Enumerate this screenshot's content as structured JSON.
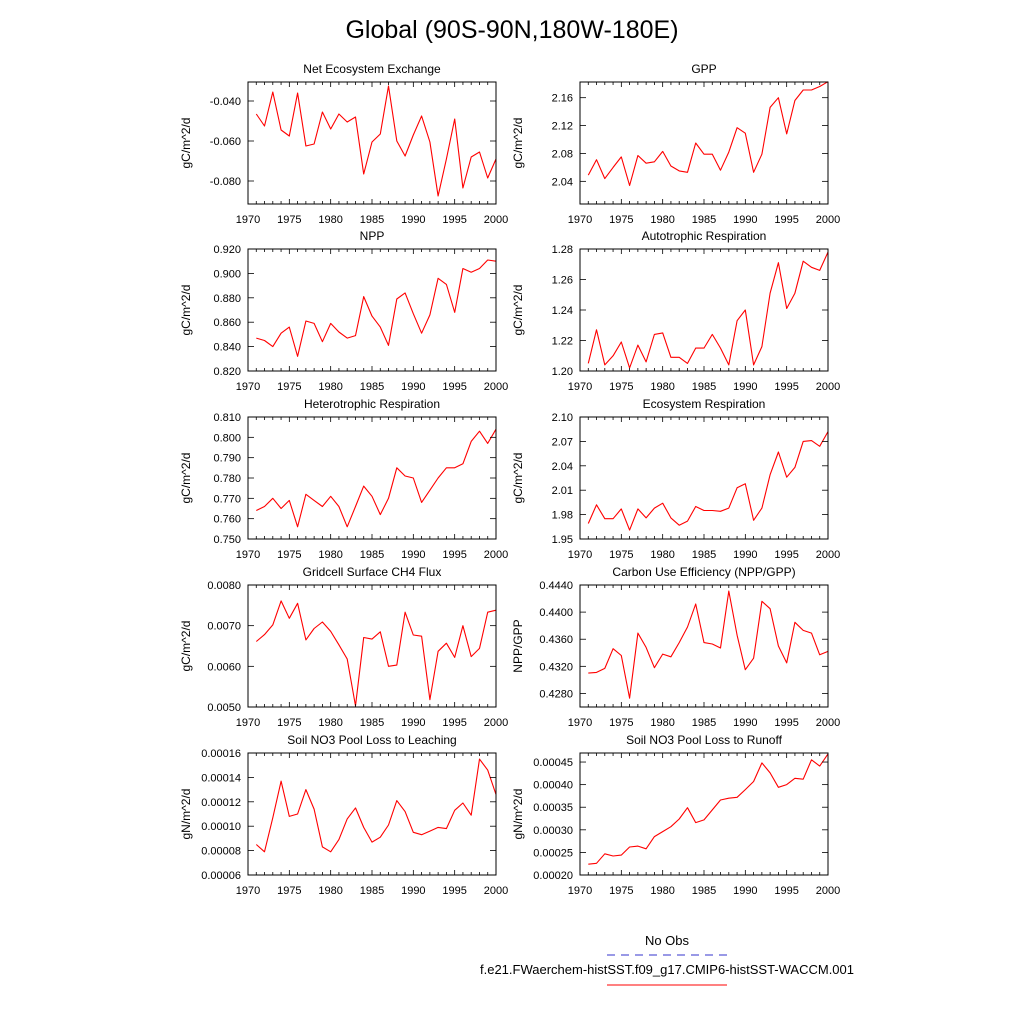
{
  "title": "Global (90S-90N,180W-180E)",
  "legend": {
    "entries": [
      {
        "label": "No Obs",
        "color": "#3333cc",
        "dash": "dashed"
      },
      {
        "label": "f.e21.FWaerchem-histSST.f09_g17.CMIP6-histSST-WACCM.001",
        "color": "#ff0000",
        "dash": "solid"
      }
    ],
    "placement": "bottom-center"
  },
  "chart_data": [
    {
      "type": "line",
      "title": "Net Ecosystem Exchange",
      "ylabel": "gC/m^2/d",
      "xlabel": "",
      "xlim": [
        1970,
        2000
      ],
      "ylim": [
        -0.0915,
        -0.0305
      ],
      "xticks": [
        "1970",
        "1975",
        "1980",
        "1985",
        "1990",
        "1995",
        "2000"
      ],
      "yticks": [
        {
          "v": -0.04,
          "label": "-0.040"
        },
        {
          "v": -0.06,
          "label": "-0.060"
        },
        {
          "v": -0.08,
          "label": "-0.080"
        }
      ],
      "x": [
        1971,
        1972,
        1973,
        1974,
        1975,
        1976,
        1977,
        1978,
        1979,
        1980,
        1981,
        1982,
        1983,
        1984,
        1985,
        1986,
        1987,
        1988,
        1989,
        1990,
        1991,
        1992,
        1993,
        1994,
        1995,
        1996,
        1997,
        1998,
        1999,
        2000
      ],
      "series": [
        {
          "color": "#ff0000",
          "values": [
            -0.0465,
            -0.0525,
            -0.0355,
            -0.0545,
            -0.0575,
            -0.036,
            -0.0625,
            -0.0615,
            -0.0455,
            -0.054,
            -0.0465,
            -0.0505,
            -0.048,
            -0.0765,
            -0.0605,
            -0.0565,
            -0.0325,
            -0.06,
            -0.0675,
            -0.057,
            -0.0475,
            -0.0605,
            -0.0875,
            -0.069,
            -0.049,
            -0.0835,
            -0.068,
            -0.0655,
            -0.0785,
            -0.069
          ]
        }
      ],
      "grid": false
    },
    {
      "type": "line",
      "title": "GPP",
      "ylabel": "gC/m^2/d",
      "xlabel": "",
      "xlim": [
        1970,
        2000
      ],
      "ylim": [
        2.0075,
        2.1825
      ],
      "xticks": [
        "1970",
        "1975",
        "1980",
        "1985",
        "1990",
        "1995",
        "2000"
      ],
      "yticks": [
        {
          "v": 2.04,
          "label": "2.04"
        },
        {
          "v": 2.08,
          "label": "2.08"
        },
        {
          "v": 2.12,
          "label": "2.12"
        },
        {
          "v": 2.16,
          "label": "2.16"
        }
      ],
      "x": [
        1971,
        1972,
        1973,
        1974,
        1975,
        1976,
        1977,
        1978,
        1979,
        1980,
        1981,
        1982,
        1983,
        1984,
        1985,
        1986,
        1987,
        1988,
        1989,
        1990,
        1991,
        1992,
        1993,
        1994,
        1995,
        1996,
        1997,
        1998,
        1999,
        2000
      ],
      "series": [
        {
          "color": "#ff0000",
          "values": [
            2.049,
            2.071,
            2.044,
            2.06,
            2.075,
            2.034,
            2.077,
            2.066,
            2.068,
            2.083,
            2.062,
            2.055,
            2.053,
            2.095,
            2.079,
            2.079,
            2.056,
            2.082,
            2.117,
            2.109,
            2.053,
            2.079,
            2.146,
            2.16,
            2.108,
            2.156,
            2.171,
            2.171,
            2.176,
            2.183
          ]
        }
      ],
      "grid": false
    },
    {
      "type": "line",
      "title": "NPP",
      "ylabel": "gC/m^2/d",
      "xlabel": "",
      "xlim": [
        1970,
        2000
      ],
      "ylim": [
        0.82,
        0.92
      ],
      "xticks": [
        "1970",
        "1975",
        "1980",
        "1985",
        "1990",
        "1995",
        "2000"
      ],
      "yticks": [
        {
          "v": 0.82,
          "label": "0.820"
        },
        {
          "v": 0.84,
          "label": "0.840"
        },
        {
          "v": 0.86,
          "label": "0.860"
        },
        {
          "v": 0.88,
          "label": "0.880"
        },
        {
          "v": 0.9,
          "label": "0.900"
        },
        {
          "v": 0.92,
          "label": "0.920"
        }
      ],
      "x": [
        1971,
        1972,
        1973,
        1974,
        1975,
        1976,
        1977,
        1978,
        1979,
        1980,
        1981,
        1982,
        1983,
        1984,
        1985,
        1986,
        1987,
        1988,
        1989,
        1990,
        1991,
        1992,
        1993,
        1994,
        1995,
        1996,
        1997,
        1998,
        1999,
        2000
      ],
      "series": [
        {
          "color": "#ff0000",
          "values": [
            0.847,
            0.845,
            0.84,
            0.851,
            0.856,
            0.832,
            0.861,
            0.859,
            0.844,
            0.859,
            0.852,
            0.847,
            0.849,
            0.881,
            0.865,
            0.856,
            0.841,
            0.879,
            0.884,
            0.867,
            0.851,
            0.866,
            0.896,
            0.891,
            0.868,
            0.904,
            0.901,
            0.904,
            0.911,
            0.91
          ]
        }
      ],
      "grid": false
    },
    {
      "type": "line",
      "title": "Autotrophic Respiration",
      "ylabel": "gC/m^2/d",
      "xlabel": "",
      "xlim": [
        1970,
        2000
      ],
      "ylim": [
        1.2,
        1.28
      ],
      "xticks": [
        "1970",
        "1975",
        "1980",
        "1985",
        "1990",
        "1995",
        "2000"
      ],
      "yticks": [
        {
          "v": 1.2,
          "label": "1.20"
        },
        {
          "v": 1.22,
          "label": "1.22"
        },
        {
          "v": 1.24,
          "label": "1.24"
        },
        {
          "v": 1.26,
          "label": "1.26"
        },
        {
          "v": 1.28,
          "label": "1.28"
        }
      ],
      "x": [
        1971,
        1972,
        1973,
        1974,
        1975,
        1976,
        1977,
        1978,
        1979,
        1980,
        1981,
        1982,
        1983,
        1984,
        1985,
        1986,
        1987,
        1988,
        1989,
        1990,
        1991,
        1992,
        1993,
        1994,
        1995,
        1996,
        1997,
        1998,
        1999,
        2000
      ],
      "series": [
        {
          "color": "#ff0000",
          "values": [
            1.205,
            1.227,
            1.204,
            1.21,
            1.219,
            1.202,
            1.217,
            1.206,
            1.224,
            1.225,
            1.209,
            1.209,
            1.205,
            1.215,
            1.215,
            1.224,
            1.215,
            1.204,
            1.233,
            1.24,
            1.204,
            1.216,
            1.251,
            1.271,
            1.241,
            1.251,
            1.272,
            1.268,
            1.266,
            1.278
          ]
        }
      ],
      "grid": false
    },
    {
      "type": "line",
      "title": "Heterotrophic Respiration",
      "ylabel": "gC/m^2/d",
      "xlabel": "",
      "xlim": [
        1970,
        2000
      ],
      "ylim": [
        0.75,
        0.81
      ],
      "xticks": [
        "1970",
        "1975",
        "1980",
        "1985",
        "1990",
        "1995",
        "2000"
      ],
      "yticks": [
        {
          "v": 0.75,
          "label": "0.750"
        },
        {
          "v": 0.76,
          "label": "0.760"
        },
        {
          "v": 0.77,
          "label": "0.770"
        },
        {
          "v": 0.78,
          "label": "0.780"
        },
        {
          "v": 0.79,
          "label": "0.790"
        },
        {
          "v": 0.8,
          "label": "0.800"
        },
        {
          "v": 0.81,
          "label": "0.810"
        }
      ],
      "x": [
        1971,
        1972,
        1973,
        1974,
        1975,
        1976,
        1977,
        1978,
        1979,
        1980,
        1981,
        1982,
        1983,
        1984,
        1985,
        1986,
        1987,
        1988,
        1989,
        1990,
        1991,
        1992,
        1993,
        1994,
        1995,
        1996,
        1997,
        1998,
        1999,
        2000
      ],
      "series": [
        {
          "color": "#ff0000",
          "values": [
            0.764,
            0.766,
            0.77,
            0.765,
            0.769,
            0.756,
            0.772,
            0.769,
            0.766,
            0.771,
            0.766,
            0.756,
            0.766,
            0.776,
            0.771,
            0.762,
            0.77,
            0.785,
            0.781,
            0.78,
            0.768,
            0.774,
            0.78,
            0.785,
            0.785,
            0.787,
            0.798,
            0.803,
            0.797,
            0.804
          ]
        }
      ],
      "grid": false
    },
    {
      "type": "line",
      "title": "Ecosystem Respiration",
      "ylabel": "gC/m^2/d",
      "xlabel": "",
      "xlim": [
        1970,
        2000
      ],
      "ylim": [
        1.95,
        2.1
      ],
      "xticks": [
        "1970",
        "1975",
        "1980",
        "1985",
        "1990",
        "1995",
        "2000"
      ],
      "yticks": [
        {
          "v": 1.95,
          "label": "1.95"
        },
        {
          "v": 1.98,
          "label": "1.98"
        },
        {
          "v": 2.01,
          "label": "2.01"
        },
        {
          "v": 2.04,
          "label": "2.04"
        },
        {
          "v": 2.07,
          "label": "2.07"
        },
        {
          "v": 2.1,
          "label": "2.10"
        }
      ],
      "x": [
        1971,
        1972,
        1973,
        1974,
        1975,
        1976,
        1977,
        1978,
        1979,
        1980,
        1981,
        1982,
        1983,
        1984,
        1985,
        1986,
        1987,
        1988,
        1989,
        1990,
        1991,
        1992,
        1993,
        1994,
        1995,
        1996,
        1997,
        1998,
        1999,
        2000
      ],
      "series": [
        {
          "color": "#ff0000",
          "values": [
            1.969,
            1.992,
            1.975,
            1.975,
            1.987,
            1.961,
            1.987,
            1.976,
            1.988,
            1.994,
            1.976,
            1.967,
            1.972,
            1.99,
            1.985,
            1.985,
            1.984,
            1.988,
            2.013,
            2.018,
            1.973,
            1.988,
            2.029,
            2.057,
            2.026,
            2.038,
            2.07,
            2.071,
            2.064,
            2.082
          ]
        }
      ],
      "grid": false
    },
    {
      "type": "line",
      "title": "Gridcell Surface CH4 Flux",
      "ylabel": "gC/m^2/d",
      "xlabel": "",
      "xlim": [
        1970,
        2000
      ],
      "ylim": [
        0.005,
        0.008
      ],
      "xticks": [
        "1970",
        "1975",
        "1980",
        "1985",
        "1990",
        "1995",
        "2000"
      ],
      "yticks": [
        {
          "v": 0.005,
          "label": "0.0050"
        },
        {
          "v": 0.006,
          "label": "0.0060"
        },
        {
          "v": 0.007,
          "label": "0.0070"
        },
        {
          "v": 0.008,
          "label": "0.0080"
        }
      ],
      "x": [
        1971,
        1972,
        1973,
        1974,
        1975,
        1976,
        1977,
        1978,
        1979,
        1980,
        1981,
        1982,
        1983,
        1984,
        1985,
        1986,
        1987,
        1988,
        1989,
        1990,
        1991,
        1992,
        1993,
        1994,
        1995,
        1996,
        1997,
        1998,
        1999,
        2000
      ],
      "series": [
        {
          "color": "#ff0000",
          "values": [
            0.00661,
            0.00678,
            0.00702,
            0.00761,
            0.00718,
            0.00755,
            0.00665,
            0.00693,
            0.00709,
            0.00686,
            0.00653,
            0.00618,
            0.00503,
            0.00671,
            0.00667,
            0.00685,
            0.006,
            0.00603,
            0.00733,
            0.00677,
            0.00674,
            0.00518,
            0.00637,
            0.00657,
            0.00622,
            0.007,
            0.00624,
            0.00644,
            0.00733,
            0.00738
          ]
        }
      ],
      "grid": false
    },
    {
      "type": "line",
      "title": "Carbon Use Efficiency (NPP/GPP)",
      "ylabel": "NPP/GPP",
      "xlabel": "",
      "xlim": [
        1970,
        2000
      ],
      "ylim": [
        0.426,
        0.444
      ],
      "xticks": [
        "1970",
        "1975",
        "1980",
        "1985",
        "1990",
        "1995",
        "2000"
      ],
      "yticks": [
        {
          "v": 0.428,
          "label": "0.4280"
        },
        {
          "v": 0.432,
          "label": "0.4320"
        },
        {
          "v": 0.436,
          "label": "0.4360"
        },
        {
          "v": 0.44,
          "label": "0.4400"
        },
        {
          "v": 0.444,
          "label": "0.4440"
        }
      ],
      "x": [
        1971,
        1972,
        1973,
        1974,
        1975,
        1976,
        1977,
        1978,
        1979,
        1980,
        1981,
        1982,
        1983,
        1984,
        1985,
        1986,
        1987,
        1988,
        1989,
        1990,
        1991,
        1992,
        1993,
        1994,
        1995,
        1996,
        1997,
        1998,
        1999,
        2000
      ],
      "series": [
        {
          "color": "#ff0000",
          "values": [
            0.431,
            0.4311,
            0.4317,
            0.4346,
            0.4336,
            0.4273,
            0.4369,
            0.4348,
            0.4318,
            0.4338,
            0.4334,
            0.4355,
            0.4378,
            0.4412,
            0.4355,
            0.4353,
            0.4347,
            0.4431,
            0.4366,
            0.4315,
            0.4332,
            0.4416,
            0.4405,
            0.435,
            0.4325,
            0.4385,
            0.4373,
            0.4369,
            0.4337,
            0.4342
          ]
        }
      ],
      "grid": false
    },
    {
      "type": "line",
      "title": "Soil NO3 Pool Loss to Leaching",
      "ylabel": "gN/m^2/d",
      "xlabel": "",
      "xlim": [
        1970,
        2000
      ],
      "ylim": [
        6e-05,
        0.00016
      ],
      "xticks": [
        "1970",
        "1975",
        "1980",
        "1985",
        "1990",
        "1995",
        "2000"
      ],
      "yticks": [
        {
          "v": 6e-05,
          "label": "0.00006"
        },
        {
          "v": 8e-05,
          "label": "0.00008"
        },
        {
          "v": 0.0001,
          "label": "0.00010"
        },
        {
          "v": 0.00012,
          "label": "0.00012"
        },
        {
          "v": 0.00014,
          "label": "0.00014"
        },
        {
          "v": 0.00016,
          "label": "0.00016"
        }
      ],
      "x": [
        1971,
        1972,
        1973,
        1974,
        1975,
        1976,
        1977,
        1978,
        1979,
        1980,
        1981,
        1982,
        1983,
        1984,
        1985,
        1986,
        1987,
        1988,
        1989,
        1990,
        1991,
        1992,
        1993,
        1994,
        1995,
        1996,
        1997,
        1998,
        1999,
        2000
      ],
      "series": [
        {
          "color": "#ff0000",
          "values": [
            8.5e-05,
            7.9e-05,
            0.000107,
            0.000137,
            0.000108,
            0.00011,
            0.00013,
            0.000114,
            8.3e-05,
            7.9e-05,
            8.9e-05,
            0.000106,
            0.000115,
            9.9e-05,
            8.7e-05,
            9.1e-05,
            0.000101,
            0.000121,
            0.000112,
            9.5e-05,
            9.3e-05,
            9.6e-05,
            9.9e-05,
            9.8e-05,
            0.000113,
            0.000119,
            0.000109,
            0.000155,
            0.000146,
            0.000126
          ]
        }
      ],
      "grid": false
    },
    {
      "type": "line",
      "title": "Soil NO3 Pool Loss to Runoff",
      "ylabel": "gN/m^2/d",
      "xlabel": "",
      "xlim": [
        1970,
        2000
      ],
      "ylim": [
        0.0002,
        0.00047
      ],
      "xticks": [
        "1970",
        "1975",
        "1980",
        "1985",
        "1990",
        "1995",
        "2000"
      ],
      "yticks": [
        {
          "v": 0.0002,
          "label": "0.00020"
        },
        {
          "v": 0.00025,
          "label": "0.00025"
        },
        {
          "v": 0.0003,
          "label": "0.00030"
        },
        {
          "v": 0.00035,
          "label": "0.00035"
        },
        {
          "v": 0.0004,
          "label": "0.00040"
        },
        {
          "v": 0.00045,
          "label": "0.00045"
        }
      ],
      "x": [
        1971,
        1972,
        1973,
        1974,
        1975,
        1976,
        1977,
        1978,
        1979,
        1980,
        1981,
        1982,
        1983,
        1984,
        1985,
        1986,
        1987,
        1988,
        1989,
        1990,
        1991,
        1992,
        1993,
        1994,
        1995,
        1996,
        1997,
        1998,
        1999,
        2000
      ],
      "series": [
        {
          "color": "#ff0000",
          "values": [
            0.000224,
            0.000226,
            0.000247,
            0.000242,
            0.000244,
            0.000262,
            0.000264,
            0.000258,
            0.000285,
            0.000296,
            0.000307,
            0.000324,
            0.000349,
            0.000316,
            0.000322,
            0.000344,
            0.000366,
            0.00037,
            0.000372,
            0.000389,
            0.000407,
            0.000448,
            0.000426,
            0.000394,
            0.0004,
            0.000414,
            0.000412,
            0.000455,
            0.000441,
            0.000468
          ]
        }
      ],
      "grid": false
    }
  ]
}
